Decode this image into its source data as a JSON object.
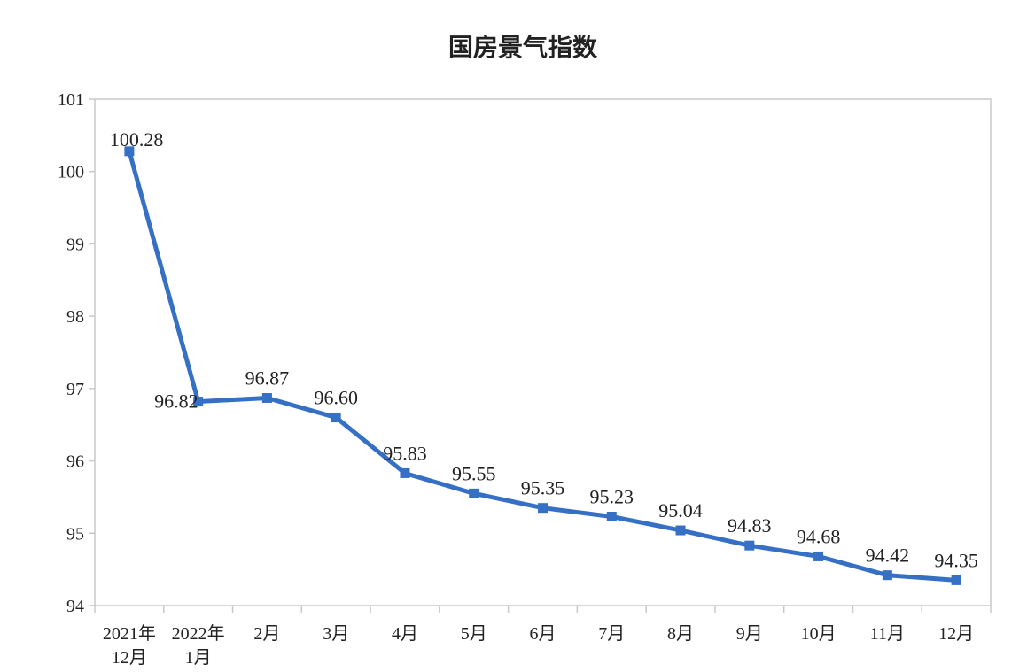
{
  "chart_data": {
    "type": "line",
    "title": "国房景气指数",
    "xlabel": "",
    "ylabel": "",
    "categories": [
      [
        "2021年",
        "12月"
      ],
      [
        "2022年",
        "1月"
      ],
      [
        "2月"
      ],
      [
        "3月"
      ],
      [
        "4月"
      ],
      [
        "5月"
      ],
      [
        "6月"
      ],
      [
        "7月"
      ],
      [
        "8月"
      ],
      [
        "9月"
      ],
      [
        "10月"
      ],
      [
        "11月"
      ],
      [
        "12月"
      ]
    ],
    "values": [
      100.28,
      96.82,
      96.87,
      96.6,
      95.83,
      95.55,
      95.35,
      95.23,
      95.04,
      94.83,
      94.68,
      94.42,
      94.35
    ],
    "value_labels": [
      "100.28",
      "96.82",
      "96.87",
      "96.60",
      "95.83",
      "95.55",
      "95.35",
      "95.23",
      "95.04",
      "94.83",
      "94.68",
      "94.42",
      "94.35"
    ],
    "ylim": [
      94,
      101
    ],
    "yticks": [
      94,
      95,
      96,
      97,
      98,
      99,
      100,
      101
    ],
    "grid": false,
    "legend": "none",
    "line_color": "#3570c4",
    "axis_color": "#c8c8c8"
  }
}
